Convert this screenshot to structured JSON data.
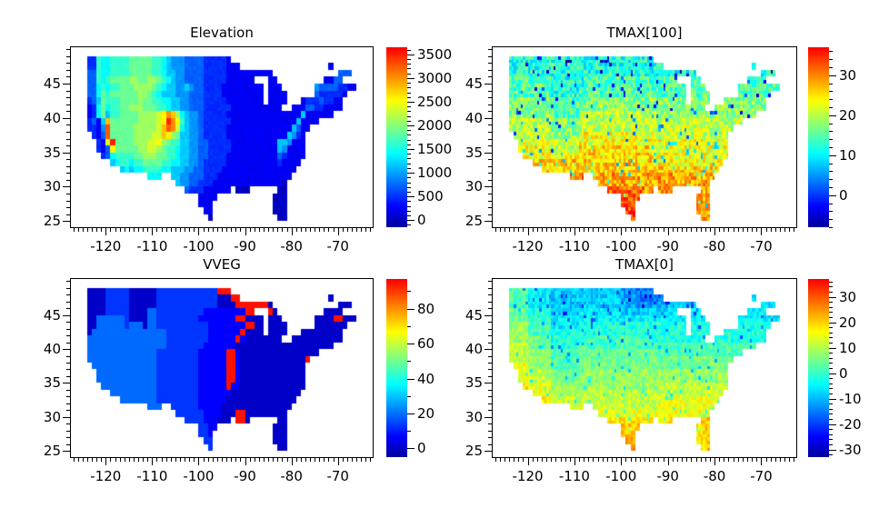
{
  "figure": {
    "background": "#ffffff",
    "text_color": "#000000",
    "tick_color": "#000000"
  },
  "us_mask": [
    "...........................................................",
    ".xxxxxxxxxxxxxxxxxxxxxxxxxxxxxxx...........................",
    ".xxxxxxxxxxxxxxxxxxxxxxxxxxxxxxxxx...................x..",
    ".xxxxxxxxxxxxxxxxxxxxxxxxxxxxxxxxxxxxxxxx..............xxx.",
    ".xxxxxxxxxxxxxxxxxxxxxxxxxxxxxxxxxxxx...xx..........xxxx.",
    ".xxxxxxxxxxxxxxxxxxxxxxxxxxxxxxxxxxxxxx.xxx.......xxxxxxxxxx",
    ".xxxxxxxxxxxxxxxxxxxxxxxxxxxxxxxxxxxxxx.xxxx......xxxxxxx...",
    ".xxxxxxxxxxxxxxxxxxxxxxxxxxxxxxxxxxxxxx.xxxx...xxxxxxxxx....",
    ".xxxxxxxxxxxxxxxxxxxxxxxxxxxxxxxxxxxxxxxxxx..xxxxxxxxxxx....",
    ".xxxxxxxxxxxxxxxxxxxxxxxxxxxxxxxxxxxxxxxxxxxxxxxxxxxxx......",
    ".xxxxxxxxxxxxxxxxxxxxxxxxxxxxxxxxxxxxxxxxxxxxxxxxxx........",
    ".xxxxxxxxxxxxxxxxxxxxxxxxxxxxxxxxxxxxxxxxxxxxxxxx.........",
    "..xxxxxxxxxxxxxxxxxxxxxxxxxxxxxxxxxxxxxxxxxxxxxx.........",
    "...xxxxxxxxxxxxxxxxxxxxxxxxxxxxxxxxxxxxxxxxxxxxx.........",
    "...xxxxxxxxxxxxxxxxxxxxxxxxxxxxxxxxxxxxxxxxxxxxx.........",
    "....xxxxxxxxxxxxxxxxxxxxxxxxxxxxxxxxxxxxxxxxxxxx..........",
    "......xxxxxxxxxxxxxxxxxxxxxxxxxxxxxxxxxxxxxxxxx...........",
    "........xxxxxxxxxxxxxxxxxxxxxxxxxxxxxxxxxxxxxx............",
    "..............xxx..xxxxxxxxxxxxxxxxxxxxxxxxxx.............",
    "....................xxxxxxxxxxxxxxxxxxxxxxxx..............",
    "......................xxxxxxxxxx.xxx......xx..............",
    ".........................xxxx............xxx..............",
    ".........................xxx.............xxx..............",
    "..........................xx.............xxx..............",
    "...........................x..............xx..............",
    "..........................................................."
  ],
  "chart_data": [
    {
      "type": "heatmap",
      "title": "Elevation",
      "x_axis": {
        "lim": [
          -127.5,
          -62.5
        ],
        "major_ticks": [
          -120,
          -110,
          -100,
          -90,
          -80,
          -70
        ],
        "minor_step": 1
      },
      "y_axis": {
        "lim": [
          24.1,
          50.3
        ],
        "major_ticks": [
          25,
          30,
          35,
          40,
          45
        ],
        "minor_step": 1
      },
      "colorbar": {
        "vmin": -150,
        "vmax": 3650,
        "major_ticks": [
          0,
          500,
          1000,
          1500,
          2000,
          2500,
          3000,
          3500
        ],
        "minor_step": 100,
        "colormap": "jet"
      },
      "grid": {
        "lon_origin": -125,
        "lat_origin": 50,
        "cell_deg": 1,
        "value_min": 0,
        "value_max": 3500,
        "noise": 50,
        "spike_fraction": 0,
        "spike_amp": 0,
        "rows": [
          "",
          "22276677778888877654443333222221111111111111111111111111122",
          "22276677778888877654443333222221111111111111111111111111122",
          "23376677778888877655443333222221111111111111111111111113332",
          "13376788889988998765443333222221111111111111111113111133332",
          "13367677888999987655445433222211111111111111111114433332211",
          "13368788888899876555444333222211111111111111111113322222111",
          "12358777888898877665544333222221111111111111111122232211111",
          "11268677889998887765544333222222111111111111111133221111111",
          "1126857788889999abdc9654432222211111111111111115111111111111",
          "12315c8888889999abfdb754432222221111111111111151111111111111",
          "12214e8888899999aceda654432222211111111111111531111111111111",
          "11213e888889999aacb985544322222111111111111154211111111111111",
          "11221af8888999aab98775544332222211111111115541111111111111111",
          "112213b8888899aa987765544332222211111111115411111111111111111",
          "11122367777889998877655443322221111111111132111111111111111",
          "11111256776778888776655443222221111111111121111111111111111",
          "11111124565667777665554433222211111111111111111111111111111",
          "11111111114556666555544333222111111111111111111111111111111",
          "11111111111111111144544332221111111111111110000000000000000",
          "11111111111111111111333222111111000000000000000000000000000",
          "11111111111111111111222221111111100000000000000000000000000",
          "11111111111111111111222221111111100000000000000000000000000",
          "11111111111111111111111111111100000000000000000000000000000",
          "11111111111111111111111111000000000000000000000000000000000",
          ""
        ]
      }
    },
    {
      "type": "heatmap",
      "title": "TMAX[100]",
      "x_axis": {
        "lim": [
          -127.5,
          -62.5
        ],
        "major_ticks": [
          -120,
          -110,
          -100,
          -90,
          -80,
          -70
        ],
        "minor_step": 1
      },
      "y_axis": {
        "lim": [
          24.1,
          50.3
        ],
        "major_ticks": [
          25,
          30,
          35,
          40,
          45
        ],
        "minor_step": 1
      },
      "colorbar": {
        "vmin": -8,
        "vmax": 37,
        "major_ticks": [
          0,
          10,
          20,
          30
        ],
        "minor_step": 2,
        "colormap": "jet"
      },
      "grid": {
        "lon_origin": -125,
        "lat_origin": 50,
        "cell_deg": 1,
        "value_min": -5,
        "value_max": 37,
        "noise": 5,
        "spike_fraction": 0.05,
        "spike_amp": -16,
        "rows": [
          "",
          "66666666666666666666666666666666666666666666666666666666666",
          "66666666666666666666666666666666666666666666666666666666666",
          "66666666666666666666666666666666666666666666666666666666666",
          "77777777776666666777777777777777777777777777777777777777777",
          "77777777776666666777777777777777777777777777777777777777777",
          "77777777776666667777777777777777777777777777777777777777777",
          "88888888887777778888888888888888888888888888888888888888888",
          "88888888887777778888888888888888888888888888888888888888888",
          "88888888887777779999999999999999988888888888888888888888888",
          "99999999998888889999999999999999999999999999999999999999999",
          "99999999998888889999999999999999999999999999999999999999999",
          "9999999999888888aaaaaaaaaaaaaaaa999999999999999999999999999",
          "aaaaaaaaaa999999aaaaaaaaaaaaaaaaaaaaaaaaaaaaaaaaaaaaaaaaaaa",
          "aaaaaaaaaa999999bbbbbbbbbbbbbbbbaaaaaaaaaaaaaaaaaaaaaaaaaaa",
          "aaaaaaaaaaaaaaaabbbbbbbbbbbbbbbbaaaaaaaaaaaaaaaaaaaaaaaaaaa",
          "bbbbbbbbbbbbbbbbbbbbbbbbbbbbbbbbaaaaaaaaaaaaaaaaaaaaaaaaaaa",
          "bbbbbbbbbbbbbbbbbbbbbbbbbbbbbbbbbbbbbbbbbbbbbbbbbbbbbbbbbbb",
          "ccccccccccccccdddccccccccccccccccccccccccccccccccccccccccccc",
          "ccccccccccccccccccccccccccccccccccccccccccccccccccccccccccc",
          "dddddddddddddddddddddddddddddDcccccccccccccccccccccccccccccc",
          "ddddddddddddddddddddddddddddddcccccccccccccccccccccccccccccc",
          "eeeeeeeeeeeeeeeeeeeeeeeeeeeeeecccccccccccccccccccccccccccccc",
          "eeeeeeeeeeeeeeeeeeeeeeeeeeeeeecccccccccccccccccccccccccccccc",
          "eeeeeeeeeeeeeeeeeeeeeeeeeeeeeecccccccccccccccccccccccccccccc",
          ""
        ]
      }
    },
    {
      "type": "heatmap",
      "title": "VVEG",
      "x_axis": {
        "lim": [
          -127.5,
          -62.5
        ],
        "major_ticks": [
          -120,
          -110,
          -100,
          -90,
          -80,
          -70
        ],
        "minor_step": 1
      },
      "y_axis": {
        "lim": [
          24.1,
          50.3
        ],
        "major_ticks": [
          25,
          30,
          35,
          40,
          45
        ],
        "minor_step": 1
      },
      "colorbar": {
        "vmin": -5,
        "vmax": 97,
        "major_ticks": [
          0,
          20,
          40,
          60,
          80
        ],
        "minor_step": 10,
        "colormap": "jet"
      },
      "grid": {
        "lon_origin": -125,
        "lat_origin": 50,
        "cell_deg": 1,
        "value_min": 0,
        "value_max": 95,
        "noise": 0,
        "spike_fraction": 0,
        "spike_amp": 0,
        "rows": [
          "",
          "00000222220000002222222222222fffffff0000000000000000000000",
          "0000022222000000222222222222200  0fffff00000000000000000000",
          "000002222200000022222222222220000ffffff f000000000000000000",
          "00000222220000332222222222111111111fff0ff000000000000000000",
          "000333333200003322222222211111111ff000000000000f000000ff0",
          "00033333323330332222222222211111111ff00000000000000000000000",
          "003333333333333333222222222111  1111f000000000000000000000",
          "03333333333333333322222222211111 1f100000000000000000000000",
          "033333333333333333222222221111111000000000000000000000000000",
          "03333333333333332222222221111 11ff1000000000000000000000000",
          "033333333333333322222222211111 1ff100000000000000f000000000",
          "03333333333333332222222221111 11ff1000000000000000000000000",
          "03333333333333332222222221111 11ff1000000000000000000000000",
          "03333333333333332222222221111 11ff1000000000000000000000000",
          "33333333333333332222222221111 11f11000000000000000000000000",
          "3333333333333333222222222111111100000000000000000000000000",
          "3333333333333333222222222111111000000000000000000000000000",
          "3333333333333333333222222111110000000000000000000000000000",
          "333333333333333333332222221111000ff00000000000000000000000",
          "3333333333333333333322222211100 0fff0000000000000000000000",
          "3333333333333333333333333221100000000000000000000000000000",
          "3333333333333333333333333221000000000000000000000000000000",
          "33333333333333333333333333220000000000000000000ff000000000",
          "33333333333333333333333333320000000000000000000ff000000000",
          ""
        ]
      }
    },
    {
      "type": "heatmap",
      "title": "TMAX[0]",
      "x_axis": {
        "lim": [
          -127.5,
          -62.5
        ],
        "major_ticks": [
          -120,
          -110,
          -100,
          -90,
          -80,
          -70
        ],
        "minor_step": 1
      },
      "y_axis": {
        "lim": [
          24.1,
          50.3
        ],
        "major_ticks": [
          25,
          30,
          35,
          40,
          45
        ],
        "minor_step": 1
      },
      "colorbar": {
        "vmin": -33,
        "vmax": 37,
        "major_ticks": [
          -30,
          -20,
          -10,
          0,
          10,
          20,
          30
        ],
        "minor_step": 2,
        "colormap": "jet"
      },
      "grid": {
        "lon_origin": -125,
        "lat_origin": 50,
        "cell_deg": 1,
        "value_min": -22,
        "value_max": 28,
        "noise": 4.5,
        "spike_fraction": 0.05,
        "spike_amp": -13,
        "rows": [
          "",
          "77777555554444444444444443332222222233333333344444444444444",
          "77777555554444444444444443332222222233333333344444444444444",
          "77777555554444444444444444333333333444444444444444444444444",
          "88888666664444445555555554444444444555555555555555555555555",
          "88888666665555555555555555555555555555555555555555555555555",
          "99999777775555556666666666666666666666666666666666666666666",
          "99999777776666666666666666666666666666666666666666666666666",
          "99999888886666667777777777777776666666666666666666666666666",
          "aaaaa888886666667777777777777777777777777777777777777777777",
          "aaaaa999997777778888888888888888777777777777777777777777777",
          "aaaaa999997777778888888888888888888888888888888888888888888",
          "bbbbb999997777778888888888888888888888888888888888888888888",
          "bbbbbaaaaa8888889999999999999999999999999999999999999999999",
          "bbbbbaaaaa8888889999999999999999999999999999999999999999999",
          "cccccbbbbb99999999999999999999999aaaaaaaaaaaaaaaaaaaaaaaaaa",
          "cccccbbbbb999999aaaaaaaaaaaaaaaaaaaaaaaaaaaaaaaaaaaaaaaaaaa",
          "ccccccccccaaaaaaaaaaaaaaaaaaaaaaabbbbbbbbbbbbbbbbbbbbbbbbbb",
          "ccccccccccccccbbbaaaaaaaaaaaaaaaabbbbbbbbbbbbbbbbbbbbbbbbbb",
          "ccccccccccccccccccccbbbbbbbbbbbbbbbbbbbbbbbbbbbbbbbbbbbbbbb",
          "cccccccccccccccccccccccccccccccccccccccccdddcccccccccccccccc",
          "ddddddddddddddddddddddddddddddcccccccccccccdddcccccccccccccc",
          "ddddddddddddddddddddddddddddcccccccccccccccdddcccccccccccccc",
          "eeeeeeeeeeeeeeeeeeeeeeeeeeeecccccccccccccccddcccccccccccccc",
          "eeeeeeeeeeeeeeeeeeeeeeeeeeeecccccccccccccccddcccccccccccccc",
          ""
        ]
      }
    }
  ]
}
